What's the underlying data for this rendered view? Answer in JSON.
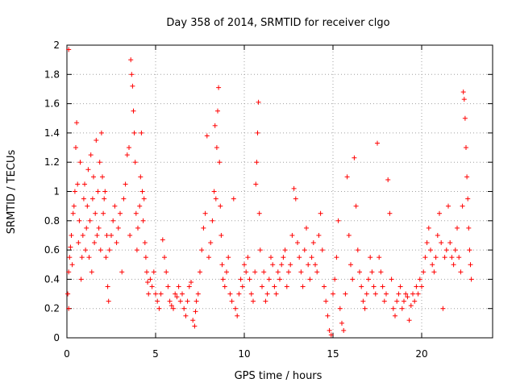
{
  "chart_data": {
    "type": "scatter",
    "title": "Day 358 of 2014, SRMTID for receiver clgo",
    "xlabel": "GPS time / hours",
    "ylabel": "SRMTID / TECUs",
    "xlim": [
      0,
      24
    ],
    "ylim": [
      0,
      2
    ],
    "xticks": [
      0,
      5,
      10,
      15,
      20
    ],
    "xtick_labels": [
      "0",
      "5",
      "10",
      "15",
      "20"
    ],
    "yticks": [
      0,
      0.2,
      0.4,
      0.6,
      0.8,
      1,
      1.2,
      1.4,
      1.6,
      1.8,
      2
    ],
    "ytick_labels": [
      "0",
      "0.2",
      "0.4",
      "0.6",
      "0.8",
      "1",
      "1.2",
      "1.4",
      "1.6",
      "1.8",
      "2"
    ],
    "marker": "+",
    "grid": true,
    "series": [
      {
        "name": "SRMTID",
        "color": "#ff0000",
        "points": [
          [
            0.05,
            0.3
          ],
          [
            0.1,
            1.97
          ],
          [
            0.1,
            0.2
          ],
          [
            0.1,
            0.45
          ],
          [
            0.15,
            0.55
          ],
          [
            0.2,
            0.62
          ],
          [
            0.25,
            0.7
          ],
          [
            0.3,
            0.5
          ],
          [
            0.35,
            0.85
          ],
          [
            0.4,
            0.9
          ],
          [
            0.45,
            1.0
          ],
          [
            0.5,
            1.3
          ],
          [
            0.55,
            1.47
          ],
          [
            0.6,
            1.05
          ],
          [
            0.65,
            0.65
          ],
          [
            0.7,
            0.8
          ],
          [
            0.75,
            1.2
          ],
          [
            0.8,
            0.4
          ],
          [
            0.85,
            0.55
          ],
          [
            0.9,
            0.7
          ],
          [
            0.95,
            0.95
          ],
          [
            1.0,
            1.05
          ],
          [
            1.05,
            0.6
          ],
          [
            1.1,
            0.75
          ],
          [
            1.15,
            0.9
          ],
          [
            1.2,
            1.15
          ],
          [
            1.25,
            0.55
          ],
          [
            1.3,
            0.8
          ],
          [
            1.35,
            1.25
          ],
          [
            1.4,
            0.45
          ],
          [
            1.45,
            0.95
          ],
          [
            1.5,
            1.1
          ],
          [
            1.55,
            0.65
          ],
          [
            1.6,
            0.85
          ],
          [
            1.65,
            1.35
          ],
          [
            1.7,
            0.7
          ],
          [
            1.75,
            1.0
          ],
          [
            1.8,
            0.75
          ],
          [
            1.85,
            1.2
          ],
          [
            1.9,
            0.6
          ],
          [
            1.95,
            1.4
          ],
          [
            2.0,
            1.1
          ],
          [
            2.05,
            0.85
          ],
          [
            2.1,
            0.95
          ],
          [
            2.15,
            1.0
          ],
          [
            2.2,
            0.55
          ],
          [
            2.25,
            0.7
          ],
          [
            2.3,
            0.35
          ],
          [
            2.35,
            0.25
          ],
          [
            2.4,
            0.6
          ],
          [
            2.5,
            0.7
          ],
          [
            2.6,
            0.8
          ],
          [
            2.7,
            0.9
          ],
          [
            2.8,
            0.65
          ],
          [
            2.9,
            0.75
          ],
          [
            3.0,
            0.85
          ],
          [
            3.1,
            0.45
          ],
          [
            3.2,
            0.95
          ],
          [
            3.3,
            1.05
          ],
          [
            3.4,
            1.25
          ],
          [
            3.5,
            1.3
          ],
          [
            3.55,
            0.7
          ],
          [
            3.6,
            1.9
          ],
          [
            3.65,
            1.8
          ],
          [
            3.7,
            1.72
          ],
          [
            3.75,
            1.55
          ],
          [
            3.8,
            1.4
          ],
          [
            3.85,
            1.2
          ],
          [
            3.9,
            0.85
          ],
          [
            3.95,
            0.6
          ],
          [
            4.0,
            0.75
          ],
          [
            4.1,
            0.9
          ],
          [
            4.15,
            1.1
          ],
          [
            4.2,
            1.4
          ],
          [
            4.25,
            1.0
          ],
          [
            4.3,
            0.8
          ],
          [
            4.35,
            0.95
          ],
          [
            4.4,
            0.65
          ],
          [
            4.45,
            0.55
          ],
          [
            4.5,
            0.45
          ],
          [
            4.55,
            0.38
          ],
          [
            4.6,
            0.3
          ],
          [
            4.7,
            0.4
          ],
          [
            4.8,
            0.35
          ],
          [
            4.9,
            0.45
          ],
          [
            5.0,
            0.3
          ],
          [
            5.1,
            0.25
          ],
          [
            5.2,
            0.2
          ],
          [
            5.3,
            0.3
          ],
          [
            5.4,
            0.67
          ],
          [
            5.5,
            0.55
          ],
          [
            5.6,
            0.45
          ],
          [
            5.7,
            0.35
          ],
          [
            5.8,
            0.25
          ],
          [
            5.9,
            0.22
          ],
          [
            6.0,
            0.2
          ],
          [
            6.1,
            0.3
          ],
          [
            6.2,
            0.28
          ],
          [
            6.3,
            0.35
          ],
          [
            6.4,
            0.25
          ],
          [
            6.5,
            0.3
          ],
          [
            6.6,
            0.2
          ],
          [
            6.7,
            0.15
          ],
          [
            6.8,
            0.25
          ],
          [
            6.9,
            0.35
          ],
          [
            7.0,
            0.38
          ],
          [
            7.1,
            0.12
          ],
          [
            7.2,
            0.08
          ],
          [
            7.25,
            0.18
          ],
          [
            7.3,
            0.25
          ],
          [
            7.4,
            0.3
          ],
          [
            7.5,
            0.45
          ],
          [
            7.6,
            0.6
          ],
          [
            7.7,
            0.75
          ],
          [
            7.8,
            0.85
          ],
          [
            7.9,
            1.38
          ],
          [
            8.0,
            0.55
          ],
          [
            8.1,
            0.65
          ],
          [
            8.2,
            0.8
          ],
          [
            8.3,
            1.0
          ],
          [
            8.35,
            1.45
          ],
          [
            8.4,
            0.95
          ],
          [
            8.45,
            1.3
          ],
          [
            8.5,
            1.55
          ],
          [
            8.55,
            1.71
          ],
          [
            8.6,
            1.2
          ],
          [
            8.65,
            0.9
          ],
          [
            8.7,
            0.7
          ],
          [
            8.75,
            0.5
          ],
          [
            8.8,
            0.4
          ],
          [
            8.9,
            0.35
          ],
          [
            9.0,
            0.45
          ],
          [
            9.1,
            0.55
          ],
          [
            9.2,
            0.3
          ],
          [
            9.3,
            0.25
          ],
          [
            9.4,
            0.95
          ],
          [
            9.5,
            0.2
          ],
          [
            9.6,
            0.15
          ],
          [
            9.7,
            0.3
          ],
          [
            9.8,
            0.4
          ],
          [
            9.9,
            0.35
          ],
          [
            10.0,
            0.5
          ],
          [
            10.1,
            0.45
          ],
          [
            10.2,
            0.55
          ],
          [
            10.3,
            0.4
          ],
          [
            10.4,
            0.3
          ],
          [
            10.5,
            0.25
          ],
          [
            10.6,
            0.45
          ],
          [
            10.65,
            1.05
          ],
          [
            10.7,
            1.2
          ],
          [
            10.75,
            1.4
          ],
          [
            10.8,
            1.61
          ],
          [
            10.85,
            0.85
          ],
          [
            10.9,
            0.6
          ],
          [
            11.0,
            0.35
          ],
          [
            11.1,
            0.45
          ],
          [
            11.2,
            0.25
          ],
          [
            11.3,
            0.3
          ],
          [
            11.4,
            0.4
          ],
          [
            11.5,
            0.55
          ],
          [
            11.6,
            0.5
          ],
          [
            11.7,
            0.35
          ],
          [
            11.8,
            0.3
          ],
          [
            11.9,
            0.45
          ],
          [
            12.0,
            0.4
          ],
          [
            12.1,
            0.5
          ],
          [
            12.2,
            0.55
          ],
          [
            12.3,
            0.6
          ],
          [
            12.4,
            0.35
          ],
          [
            12.5,
            0.45
          ],
          [
            12.6,
            0.5
          ],
          [
            12.7,
            0.7
          ],
          [
            12.8,
            1.02
          ],
          [
            12.9,
            0.95
          ],
          [
            13.0,
            0.65
          ],
          [
            13.1,
            0.55
          ],
          [
            13.2,
            0.45
          ],
          [
            13.3,
            0.35
          ],
          [
            13.4,
            0.6
          ],
          [
            13.5,
            0.75
          ],
          [
            13.6,
            0.5
          ],
          [
            13.7,
            0.4
          ],
          [
            13.8,
            0.55
          ],
          [
            13.9,
            0.65
          ],
          [
            14.0,
            0.5
          ],
          [
            14.1,
            0.45
          ],
          [
            14.2,
            0.7
          ],
          [
            14.3,
            0.85
          ],
          [
            14.4,
            0.6
          ],
          [
            14.5,
            0.35
          ],
          [
            14.6,
            0.25
          ],
          [
            14.7,
            0.15
          ],
          [
            14.8,
            0.05
          ],
          [
            14.9,
            0.02
          ],
          [
            15.0,
            0.3
          ],
          [
            15.1,
            0.4
          ],
          [
            15.2,
            0.55
          ],
          [
            15.3,
            0.8
          ],
          [
            15.4,
            0.2
          ],
          [
            15.5,
            0.1
          ],
          [
            15.6,
            0.05
          ],
          [
            15.7,
            0.3
          ],
          [
            15.8,
            1.1
          ],
          [
            15.9,
            0.7
          ],
          [
            16.0,
            0.5
          ],
          [
            16.1,
            0.4
          ],
          [
            16.2,
            1.23
          ],
          [
            16.3,
            0.9
          ],
          [
            16.4,
            0.6
          ],
          [
            16.5,
            0.45
          ],
          [
            16.6,
            0.35
          ],
          [
            16.7,
            0.25
          ],
          [
            16.8,
            0.2
          ],
          [
            16.9,
            0.3
          ],
          [
            17.0,
            0.4
          ],
          [
            17.1,
            0.55
          ],
          [
            17.2,
            0.45
          ],
          [
            17.3,
            0.35
          ],
          [
            17.4,
            0.3
          ],
          [
            17.5,
            1.33
          ],
          [
            17.6,
            0.55
          ],
          [
            17.7,
            0.45
          ],
          [
            17.8,
            0.35
          ],
          [
            17.9,
            0.25
          ],
          [
            18.0,
            0.3
          ],
          [
            18.1,
            1.08
          ],
          [
            18.2,
            0.85
          ],
          [
            18.3,
            0.4
          ],
          [
            18.4,
            0.2
          ],
          [
            18.5,
            0.15
          ],
          [
            18.6,
            0.25
          ],
          [
            18.7,
            0.3
          ],
          [
            18.8,
            0.35
          ],
          [
            18.9,
            0.2
          ],
          [
            19.0,
            0.25
          ],
          [
            19.1,
            0.3
          ],
          [
            19.2,
            0.28
          ],
          [
            19.3,
            0.12
          ],
          [
            19.4,
            0.22
          ],
          [
            19.5,
            0.3
          ],
          [
            19.6,
            0.25
          ],
          [
            19.7,
            0.35
          ],
          [
            19.8,
            0.3
          ],
          [
            19.9,
            0.4
          ],
          [
            20.0,
            0.35
          ],
          [
            20.1,
            0.45
          ],
          [
            20.2,
            0.55
          ],
          [
            20.3,
            0.65
          ],
          [
            20.4,
            0.75
          ],
          [
            20.5,
            0.6
          ],
          [
            20.6,
            0.5
          ],
          [
            20.7,
            0.45
          ],
          [
            20.8,
            0.55
          ],
          [
            20.9,
            0.7
          ],
          [
            21.0,
            0.85
          ],
          [
            21.1,
            0.65
          ],
          [
            21.2,
            0.2
          ],
          [
            21.3,
            0.55
          ],
          [
            21.4,
            0.6
          ],
          [
            21.5,
            0.9
          ],
          [
            21.6,
            0.65
          ],
          [
            21.7,
            0.55
          ],
          [
            21.8,
            0.5
          ],
          [
            21.9,
            0.6
          ],
          [
            22.0,
            0.75
          ],
          [
            22.1,
            0.55
          ],
          [
            22.2,
            0.45
          ],
          [
            22.3,
            0.9
          ],
          [
            22.35,
            1.68
          ],
          [
            22.4,
            1.63
          ],
          [
            22.45,
            1.5
          ],
          [
            22.5,
            1.3
          ],
          [
            22.55,
            1.1
          ],
          [
            22.6,
            0.95
          ],
          [
            22.65,
            0.75
          ],
          [
            22.7,
            0.6
          ],
          [
            22.75,
            0.5
          ],
          [
            22.8,
            0.4
          ]
        ]
      }
    ]
  }
}
